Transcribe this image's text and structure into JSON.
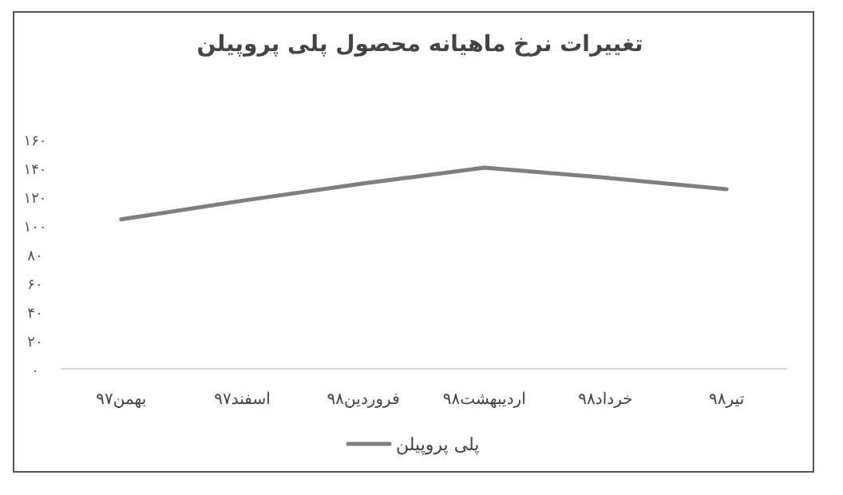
{
  "chart_data": {
    "type": "line",
    "title": "تغییرات نرخ ماهیانه محصول پلی پروپیلن",
    "categories": [
      "بهمن۹۷",
      "اسفند۹۷",
      "فروردین۹۸",
      "اردیبهشت۹۸",
      "خرداد۹۸",
      "تیر۹۸"
    ],
    "series": [
      {
        "name": "پلی پروپیلن",
        "color": "#7f7f7f",
        "values": [
          104,
          117,
          129,
          140,
          133,
          125
        ]
      }
    ],
    "ylim": [
      0,
      160
    ],
    "yticks": [
      {
        "value": 0,
        "label": "۰"
      },
      {
        "value": 20,
        "label": "۲۰"
      },
      {
        "value": 40,
        "label": "۴۰"
      },
      {
        "value": 60,
        "label": "۶۰"
      },
      {
        "value": 80,
        "label": "۸۰"
      },
      {
        "value": 100,
        "label": "۱۰۰"
      },
      {
        "value": 120,
        "label": "۱۲۰"
      },
      {
        "value": 140,
        "label": "۱۴۰"
      },
      {
        "value": 160,
        "label": "۱۶۰"
      }
    ],
    "legend": "bottom",
    "marker": "none",
    "line_style": "solid"
  }
}
